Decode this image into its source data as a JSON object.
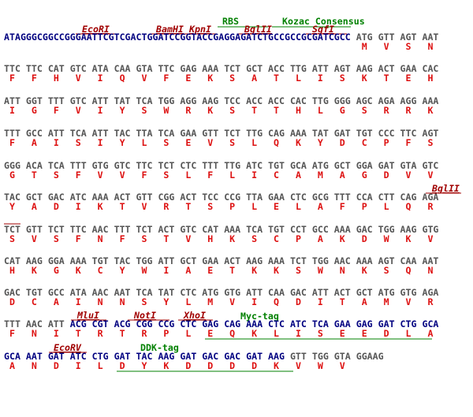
{
  "annotations": [
    {
      "label": "RBS"
    },
    {
      "label": "Kozac Consensus"
    },
    {
      "label": "EcoRI"
    },
    {
      "label": "BamHI"
    },
    {
      "label": "KpnI"
    },
    {
      "label": "BglII"
    },
    {
      "label": "SgfI"
    },
    {
      "label": "BglII"
    },
    {
      "label": "MluI"
    },
    {
      "label": "NotI"
    },
    {
      "label": "XhoI"
    },
    {
      "label": "Myc-tag"
    },
    {
      "label": "EcoRV"
    },
    {
      "label": "DDK-tag"
    }
  ],
  "leader": {
    "sequence": "ATAGGGCGGCCGGGAATTCGTCGACTGGATCCGGTACCGAGGAGATCTGCCGCCGCGATCGCC",
    "color": "#000080"
  },
  "rows": [
    {
      "segments": [
        {
          "color": "#555555",
          "codons": [
            "ATG",
            "GTT",
            "AGT",
            "AAT"
          ]
        }
      ],
      "aminos": [
        "M",
        "V",
        "S",
        "N"
      ]
    },
    {
      "segments": [
        {
          "color": "#555555",
          "codons": [
            "TTC",
            "TTC",
            "CAT",
            "GTC",
            "ATA",
            "CAA",
            "GTA",
            "TTC",
            "GAG",
            "AAA",
            "TCT",
            "GCT",
            "ACC",
            "TTG",
            "ATT",
            "AGT",
            "AAG",
            "ACT",
            "GAA",
            "CAC"
          ]
        }
      ],
      "aminos": [
        "F",
        "F",
        "H",
        "V",
        "I",
        "Q",
        "V",
        "F",
        "E",
        "K",
        "S",
        "A",
        "T",
        "L",
        "I",
        "S",
        "K",
        "T",
        "E",
        "H"
      ]
    },
    {
      "segments": [
        {
          "color": "#555555",
          "codons": [
            "ATT",
            "GGT",
            "TTT",
            "GTC",
            "ATT",
            "TAT",
            "TCA",
            "TGG",
            "AGG",
            "AAG",
            "TCC",
            "ACC",
            "ACC",
            "CAC",
            "TTG",
            "GGG",
            "AGC",
            "AGA",
            "AGG",
            "AAA"
          ]
        }
      ],
      "aminos": [
        "I",
        "G",
        "F",
        "V",
        "I",
        "Y",
        "S",
        "W",
        "R",
        "K",
        "S",
        "T",
        "T",
        "H",
        "L",
        "G",
        "S",
        "R",
        "R",
        "K"
      ]
    },
    {
      "segments": [
        {
          "color": "#555555",
          "codons": [
            "TTT",
            "GCC",
            "ATT",
            "TCA",
            "ATT",
            "TAC",
            "TTA",
            "TCA",
            "GAA",
            "GTT",
            "TCT",
            "TTG",
            "CAG",
            "AAA",
            "TAT",
            "GAT",
            "TGT",
            "CCC",
            "TTC",
            "AGT"
          ]
        }
      ],
      "aminos": [
        "F",
        "A",
        "I",
        "S",
        "I",
        "Y",
        "L",
        "S",
        "E",
        "V",
        "S",
        "L",
        "Q",
        "K",
        "Y",
        "D",
        "C",
        "P",
        "F",
        "S"
      ]
    },
    {
      "segments": [
        {
          "color": "#555555",
          "codons": [
            "GGG",
            "ACA",
            "TCA",
            "TTT",
            "GTG",
            "GTC",
            "TTC",
            "TCT",
            "CTC",
            "TTT",
            "TTG",
            "ATC",
            "TGT",
            "GCA",
            "ATG",
            "GCT",
            "GGA",
            "GAT",
            "GTA",
            "GTC"
          ]
        }
      ],
      "aminos": [
        "G",
        "T",
        "S",
        "F",
        "V",
        "V",
        "F",
        "S",
        "L",
        "F",
        "L",
        "I",
        "C",
        "A",
        "M",
        "A",
        "G",
        "D",
        "V",
        "V"
      ]
    },
    {
      "segments": [
        {
          "color": "#555555",
          "codons": [
            "TAC",
            "GCT",
            "GAC",
            "ATC",
            "AAA",
            "ACT",
            "GTT",
            "CGG",
            "ACT",
            "TCC",
            "CCG",
            "TTA",
            "GAA",
            "CTC",
            "GCG",
            "TTT",
            "CCA",
            "CTT",
            "CAG",
            "AGA"
          ]
        }
      ],
      "aminos": [
        "Y",
        "A",
        "D",
        "I",
        "K",
        "T",
        "V",
        "R",
        "T",
        "S",
        "P",
        "L",
        "E",
        "L",
        "A",
        "F",
        "P",
        "L",
        "Q",
        "R"
      ]
    },
    {
      "segments": [
        {
          "color": "#555555",
          "codons": [
            "TCT",
            "GTT",
            "TCT",
            "TTC",
            "AAC",
            "TTT",
            "TCT",
            "ACT",
            "GTC",
            "CAT",
            "AAA",
            "TCA",
            "TGT",
            "CCT",
            "GCC",
            "AAA",
            "GAC",
            "TGG",
            "AAG",
            "GTG"
          ]
        }
      ],
      "aminos": [
        "S",
        "V",
        "S",
        "F",
        "N",
        "F",
        "S",
        "T",
        "V",
        "H",
        "K",
        "S",
        "C",
        "P",
        "A",
        "K",
        "D",
        "W",
        "K",
        "V"
      ]
    },
    {
      "segments": [
        {
          "color": "#555555",
          "codons": [
            "CAT",
            "AAG",
            "GGA",
            "AAA",
            "TGT",
            "TAC",
            "TGG",
            "ATT",
            "GCT",
            "GAA",
            "ACT",
            "AAG",
            "AAA",
            "TCT",
            "TGG",
            "AAC",
            "AAA",
            "AGT",
            "CAA",
            "AAT"
          ]
        }
      ],
      "aminos": [
        "H",
        "K",
        "G",
        "K",
        "C",
        "Y",
        "W",
        "I",
        "A",
        "E",
        "T",
        "K",
        "K",
        "S",
        "W",
        "N",
        "K",
        "S",
        "Q",
        "N"
      ]
    },
    {
      "segments": [
        {
          "color": "#555555",
          "codons": [
            "GAC",
            "TGT",
            "GCC",
            "ATA",
            "AAC",
            "AAT",
            "TCA",
            "TAT",
            "CTC",
            "ATG",
            "GTG",
            "ATT",
            "CAA",
            "GAC",
            "ATT",
            "ACT",
            "GCT",
            "ATG",
            "GTG",
            "AGA"
          ]
        }
      ],
      "aminos": [
        "D",
        "C",
        "A",
        "I",
        "N",
        "N",
        "S",
        "Y",
        "L",
        "M",
        "V",
        "I",
        "Q",
        "D",
        "I",
        "T",
        "A",
        "M",
        "V",
        "R"
      ]
    },
    {
      "segments": [
        {
          "color": "#555555",
          "codons": [
            "TTT",
            "AAC",
            "ATT"
          ]
        },
        {
          "color": "#000080",
          "codons": [
            "ACG",
            "CGT",
            "ACG",
            "CGG",
            "CCG",
            "CTC",
            "GAG",
            "CAG",
            "AAA",
            "CTC",
            "ATC",
            "TCA",
            "GAA",
            "GAG",
            "GAT",
            "CTG",
            "GCA"
          ]
        }
      ],
      "aminos": [
        "F",
        "N",
        "I",
        "T",
        "R",
        "T",
        "R",
        "P",
        "L",
        "E",
        "Q",
        "K",
        "L",
        "I",
        "S",
        "E",
        "E",
        "D",
        "L",
        "A"
      ]
    },
    {
      "segments": [
        {
          "color": "#000080",
          "codons": [
            "GCA",
            "AAT",
            "GAT",
            "ATC",
            "CTG",
            "GAT",
            "TAC",
            "AAG",
            "GAT",
            "GAC",
            "GAC",
            "GAT",
            "AAG"
          ]
        },
        {
          "color": "#555555",
          "codons": [
            "GTT",
            "TGG",
            "GTA",
            "GGAAG"
          ]
        }
      ],
      "aminos": [
        "A",
        "N",
        "D",
        "I",
        "L",
        "D",
        "Y",
        "K",
        "D",
        "D",
        "D",
        "D",
        "K",
        "V",
        "W",
        "V"
      ]
    }
  ]
}
